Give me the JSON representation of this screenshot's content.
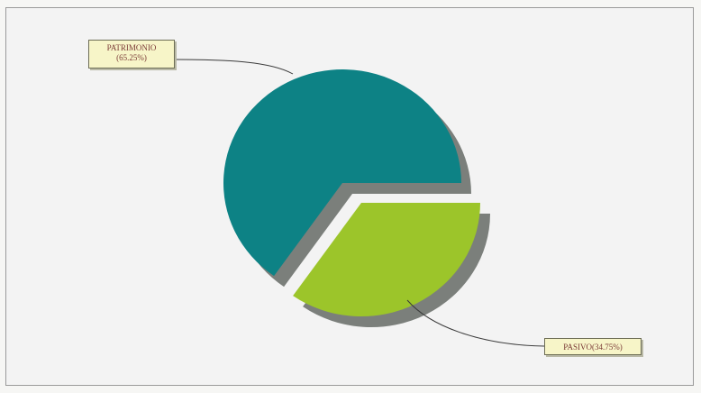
{
  "chart_data": {
    "type": "pie",
    "title": "",
    "slices": [
      {
        "label": "PATRIMONIO",
        "percent_text": "(65.25%)",
        "value": 65.25,
        "color": "#0d8285"
      },
      {
        "label": "PASIVO",
        "percent_text": "(34.75%)",
        "value": 34.75,
        "color": "#9cc52a"
      }
    ],
    "exploded": true,
    "shadow": true,
    "shadow_color": "#7b7f7b",
    "legend": "none"
  }
}
